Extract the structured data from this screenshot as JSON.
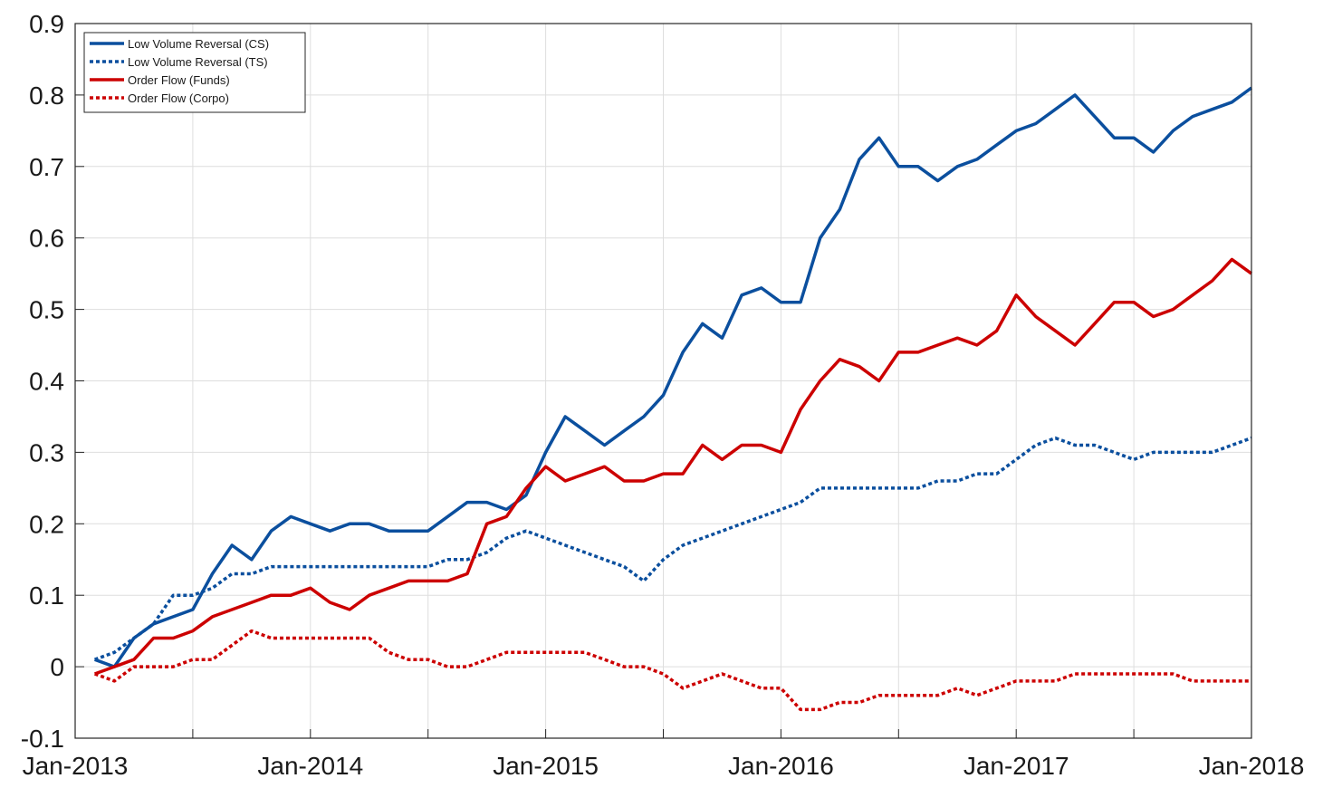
{
  "chart_data": {
    "type": "line",
    "x": [
      "2013-02",
      "2013-03",
      "2013-04",
      "2013-05",
      "2013-06",
      "2013-07",
      "2013-08",
      "2013-09",
      "2013-10",
      "2013-11",
      "2013-12",
      "2014-01",
      "2014-02",
      "2014-03",
      "2014-04",
      "2014-05",
      "2014-06",
      "2014-07",
      "2014-08",
      "2014-09",
      "2014-10",
      "2014-11",
      "2014-12",
      "2015-01",
      "2015-02",
      "2015-03",
      "2015-04",
      "2015-05",
      "2015-06",
      "2015-07",
      "2015-08",
      "2015-09",
      "2015-10",
      "2015-11",
      "2015-12",
      "2016-01",
      "2016-02",
      "2016-03",
      "2016-04",
      "2016-05",
      "2016-06",
      "2016-07",
      "2016-08",
      "2016-09",
      "2016-10",
      "2016-11",
      "2016-12",
      "2017-01",
      "2017-02",
      "2017-03",
      "2017-04",
      "2017-05",
      "2017-06",
      "2017-07",
      "2017-08",
      "2017-09",
      "2017-10",
      "2017-11",
      "2017-12",
      "2018-01"
    ],
    "series": [
      {
        "name": "Low Volume Reversal (CS)",
        "color": "#0b4f9e",
        "style": "solid",
        "values": [
          0.01,
          0.0,
          0.04,
          0.06,
          0.07,
          0.08,
          0.13,
          0.17,
          0.15,
          0.19,
          0.21,
          0.2,
          0.19,
          0.2,
          0.2,
          0.19,
          0.19,
          0.19,
          0.21,
          0.23,
          0.23,
          0.22,
          0.24,
          0.3,
          0.35,
          0.33,
          0.31,
          0.33,
          0.35,
          0.38,
          0.44,
          0.48,
          0.46,
          0.52,
          0.53,
          0.51,
          0.51,
          0.6,
          0.64,
          0.71,
          0.74,
          0.7,
          0.7,
          0.68,
          0.7,
          0.71,
          0.73,
          0.75,
          0.76,
          0.78,
          0.8,
          0.77,
          0.74,
          0.74,
          0.72,
          0.75,
          0.77,
          0.78,
          0.79,
          0.81
        ]
      },
      {
        "name": "Low Volume Reversal (TS)",
        "color": "#0b4f9e",
        "style": "dotted",
        "values": [
          0.01,
          0.02,
          0.04,
          0.06,
          0.1,
          0.1,
          0.11,
          0.13,
          0.13,
          0.14,
          0.14,
          0.14,
          0.14,
          0.14,
          0.14,
          0.14,
          0.14,
          0.14,
          0.15,
          0.15,
          0.16,
          0.18,
          0.19,
          0.18,
          0.17,
          0.16,
          0.15,
          0.14,
          0.12,
          0.15,
          0.17,
          0.18,
          0.19,
          0.2,
          0.21,
          0.22,
          0.23,
          0.25,
          0.25,
          0.25,
          0.25,
          0.25,
          0.25,
          0.26,
          0.26,
          0.27,
          0.27,
          0.29,
          0.31,
          0.32,
          0.31,
          0.31,
          0.3,
          0.29,
          0.3,
          0.3,
          0.3,
          0.3,
          0.31,
          0.32
        ]
      },
      {
        "name": "Order Flow (Funds)",
        "color": "#cc0000",
        "style": "solid",
        "values": [
          -0.01,
          0.0,
          0.01,
          0.04,
          0.04,
          0.05,
          0.07,
          0.08,
          0.09,
          0.1,
          0.1,
          0.11,
          0.09,
          0.08,
          0.1,
          0.11,
          0.12,
          0.12,
          0.12,
          0.13,
          0.2,
          0.21,
          0.25,
          0.28,
          0.26,
          0.27,
          0.28,
          0.26,
          0.26,
          0.27,
          0.27,
          0.31,
          0.29,
          0.31,
          0.31,
          0.3,
          0.36,
          0.4,
          0.43,
          0.42,
          0.4,
          0.44,
          0.44,
          0.45,
          0.46,
          0.45,
          0.47,
          0.52,
          0.49,
          0.47,
          0.45,
          0.48,
          0.51,
          0.51,
          0.49,
          0.5,
          0.52,
          0.54,
          0.57,
          0.55
        ]
      },
      {
        "name": "Order Flow (Corpo)",
        "color": "#cc0000",
        "style": "dotted",
        "values": [
          -0.01,
          -0.02,
          0.0,
          0.0,
          0.0,
          0.01,
          0.01,
          0.03,
          0.05,
          0.04,
          0.04,
          0.04,
          0.04,
          0.04,
          0.04,
          0.02,
          0.01,
          0.01,
          0.0,
          0.0,
          0.01,
          0.02,
          0.02,
          0.02,
          0.02,
          0.02,
          0.01,
          0.0,
          0.0,
          -0.01,
          -0.03,
          -0.02,
          -0.01,
          -0.02,
          -0.03,
          -0.03,
          -0.06,
          -0.06,
          -0.05,
          -0.05,
          -0.04,
          -0.04,
          -0.04,
          -0.04,
          -0.03,
          -0.04,
          -0.03,
          -0.02,
          -0.02,
          -0.02,
          -0.01,
          -0.01,
          -0.01,
          -0.01,
          -0.01,
          -0.01,
          -0.02,
          -0.02,
          -0.02,
          -0.02
        ]
      }
    ],
    "xlim": [
      "2013-01",
      "2018-01"
    ],
    "xticks": [
      {
        "value": "2013-01",
        "label": "Jan-2013"
      },
      {
        "value": "2013-07",
        "label": null
      },
      {
        "value": "2014-01",
        "label": "Jan-2014"
      },
      {
        "value": "2014-07",
        "label": null
      },
      {
        "value": "2015-01",
        "label": "Jan-2015"
      },
      {
        "value": "2015-07",
        "label": null
      },
      {
        "value": "2016-01",
        "label": "Jan-2016"
      },
      {
        "value": "2016-07",
        "label": null
      },
      {
        "value": "2017-01",
        "label": "Jan-2017"
      },
      {
        "value": "2017-07",
        "label": null
      },
      {
        "value": "2018-01",
        "label": "Jan-2018"
      }
    ],
    "ylim": [
      -0.1,
      0.9
    ],
    "yticks": [
      -0.1,
      0,
      0.1,
      0.2,
      0.3,
      0.4,
      0.5,
      0.6,
      0.7,
      0.8,
      0.9
    ],
    "grid": true,
    "legend": "upper-left"
  }
}
